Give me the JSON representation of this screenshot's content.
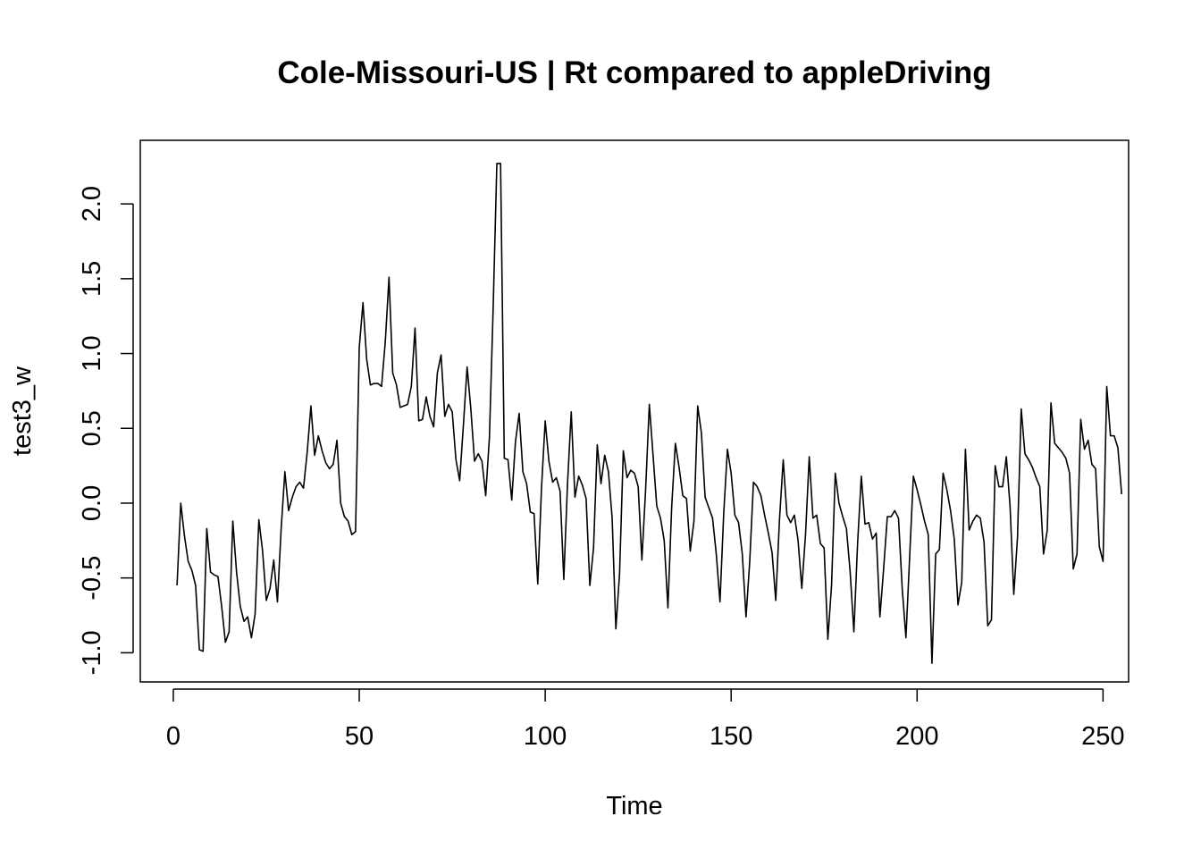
{
  "chart_data": {
    "type": "line",
    "title": "Cole-Missouri-US | Rt compared to appleDriving",
    "xlabel": "Time",
    "ylabel": "test3_w",
    "xlim": [
      -8.88,
      256.88
    ],
    "ylim": [
      -1.195,
      2.425
    ],
    "x_ticks": [
      0,
      50,
      100,
      150,
      200,
      250
    ],
    "x_tick_labels": [
      "0",
      "50",
      "100",
      "150",
      "200",
      "250"
    ],
    "y_ticks": [
      -1.0,
      -0.5,
      0.0,
      0.5,
      1.0,
      1.5,
      2.0
    ],
    "y_tick_labels": [
      "-1.0",
      "-0.5",
      "0.0",
      "0.5",
      "1.0",
      "1.5",
      "2.0"
    ],
    "grid": false,
    "series": [
      {
        "name": "test3_w",
        "x_start": 1,
        "values": [
          -0.55,
          0.0,
          -0.22,
          -0.39,
          -0.45,
          -0.55,
          -0.98,
          -0.99,
          -0.17,
          -0.46,
          -0.48,
          -0.49,
          -0.69,
          -0.93,
          -0.86,
          -0.12,
          -0.46,
          -0.69,
          -0.79,
          -0.76,
          -0.9,
          -0.74,
          -0.11,
          -0.32,
          -0.65,
          -0.57,
          -0.38,
          -0.66,
          -0.17,
          0.21,
          -0.05,
          0.04,
          0.11,
          0.14,
          0.1,
          0.34,
          0.65,
          0.32,
          0.45,
          0.35,
          0.27,
          0.23,
          0.26,
          0.42,
          0.0,
          -0.09,
          -0.12,
          -0.21,
          -0.19,
          1.04,
          1.34,
          0.96,
          0.79,
          0.8,
          0.8,
          0.78,
          1.08,
          1.51,
          0.87,
          0.79,
          0.64,
          0.65,
          0.66,
          0.78,
          1.17,
          0.55,
          0.56,
          0.71,
          0.58,
          0.51,
          0.87,
          0.99,
          0.58,
          0.66,
          0.61,
          0.29,
          0.15,
          0.52,
          0.91,
          0.63,
          0.28,
          0.33,
          0.28,
          0.05,
          0.44,
          1.3,
          2.27,
          2.27,
          0.3,
          0.29,
          0.02,
          0.41,
          0.6,
          0.21,
          0.13,
          -0.06,
          -0.07,
          -0.54,
          0.1,
          0.55,
          0.28,
          0.14,
          0.17,
          0.08,
          -0.51,
          0.13,
          0.61,
          0.04,
          0.18,
          0.12,
          0.03,
          -0.55,
          -0.3,
          0.39,
          0.13,
          0.32,
          0.21,
          -0.1,
          -0.84,
          -0.47,
          0.35,
          0.17,
          0.22,
          0.2,
          0.11,
          -0.38,
          0.09,
          0.66,
          0.32,
          -0.02,
          -0.1,
          -0.25,
          -0.7,
          -0.03,
          0.4,
          0.24,
          0.05,
          0.03,
          -0.32,
          -0.12,
          0.65,
          0.47,
          0.04,
          -0.03,
          -0.1,
          -0.34,
          -0.66,
          -0.07,
          0.36,
          0.2,
          -0.08,
          -0.13,
          -0.34,
          -0.76,
          -0.39,
          0.14,
          0.11,
          0.05,
          -0.08,
          -0.2,
          -0.33,
          -0.65,
          -0.11,
          0.29,
          -0.08,
          -0.13,
          -0.08,
          -0.25,
          -0.57,
          -0.21,
          0.31,
          -0.1,
          -0.08,
          -0.27,
          -0.3,
          -0.91,
          -0.55,
          0.2,
          0.0,
          -0.09,
          -0.17,
          -0.46,
          -0.86,
          -0.27,
          0.18,
          -0.14,
          -0.13,
          -0.24,
          -0.2,
          -0.76,
          -0.44,
          -0.09,
          -0.09,
          -0.05,
          -0.1,
          -0.57,
          -0.9,
          -0.36,
          0.18,
          0.09,
          -0.01,
          -0.12,
          -0.21,
          -1.07,
          -0.34,
          -0.31,
          0.2,
          0.09,
          -0.05,
          -0.24,
          -0.68,
          -0.53,
          0.36,
          -0.18,
          -0.12,
          -0.08,
          -0.1,
          -0.26,
          -0.82,
          -0.78,
          0.25,
          0.11,
          0.11,
          0.31,
          -0.02,
          -0.61,
          -0.23,
          0.63,
          0.33,
          0.29,
          0.24,
          0.17,
          0.11,
          -0.34,
          -0.18,
          0.67,
          0.4,
          0.37,
          0.34,
          0.3,
          0.2,
          -0.44,
          -0.34,
          0.56,
          0.36,
          0.42,
          0.26,
          0.23,
          -0.29,
          -0.39,
          0.78,
          0.45,
          0.45,
          0.37,
          0.06
        ]
      }
    ]
  }
}
